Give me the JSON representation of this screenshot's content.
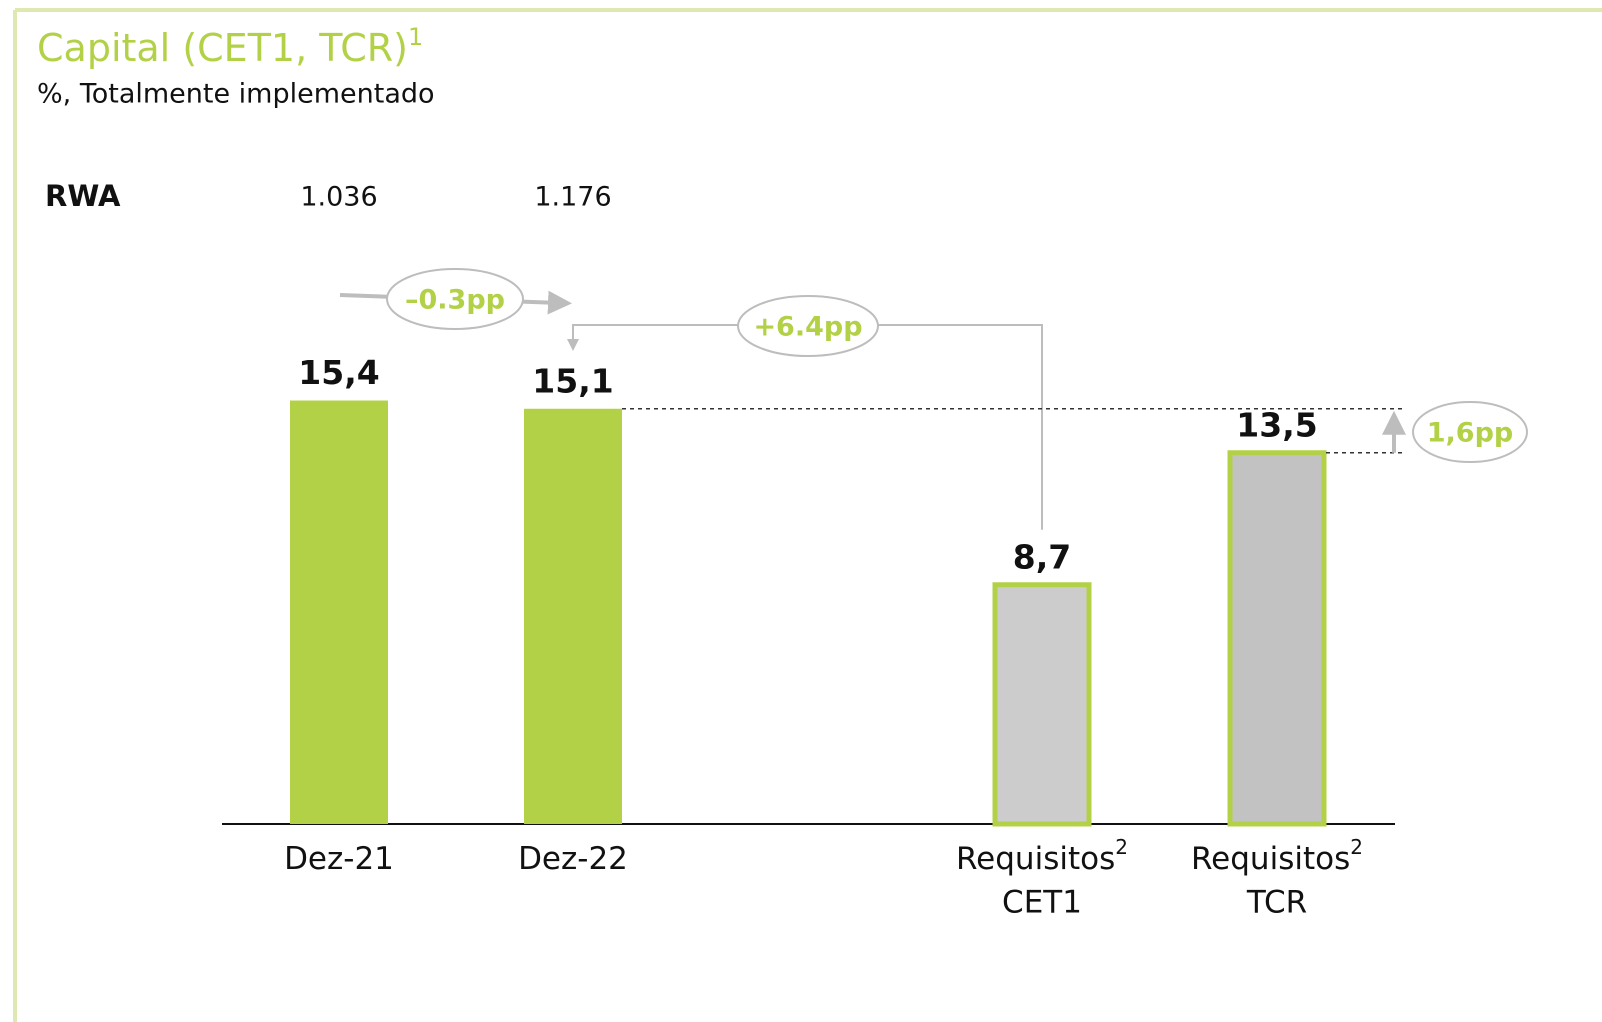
{
  "chart_data": {
    "type": "bar",
    "title": "Capital (CET1, TCR)",
    "title_footnote": "1",
    "subtitle": "%, Totalmente implementado",
    "categories": [
      {
        "label": "Dez-21"
      },
      {
        "label": "Dez-22"
      },
      {
        "label": "Requisitos",
        "footnote": "2",
        "sublabel": "CET1"
      },
      {
        "label": "Requisitos",
        "footnote": "2",
        "sublabel": "TCR"
      }
    ],
    "values": [
      15.4,
      15.1,
      8.7,
      13.5
    ],
    "value_labels": [
      "15,4",
      "15,1",
      "8,7",
      "13,5"
    ],
    "colors": [
      "#b3d147",
      "#b3d147",
      "#cccccc",
      "#c2c2c2"
    ],
    "outline": "#b3d147",
    "ylim": [
      0,
      20
    ],
    "rwa": {
      "label": "RWA",
      "values": [
        1036,
        1176
      ],
      "value_labels": [
        "1.036",
        "1.176"
      ]
    },
    "annotations": [
      "–0.3pp",
      "+6.4pp",
      "1,6pp"
    ]
  }
}
